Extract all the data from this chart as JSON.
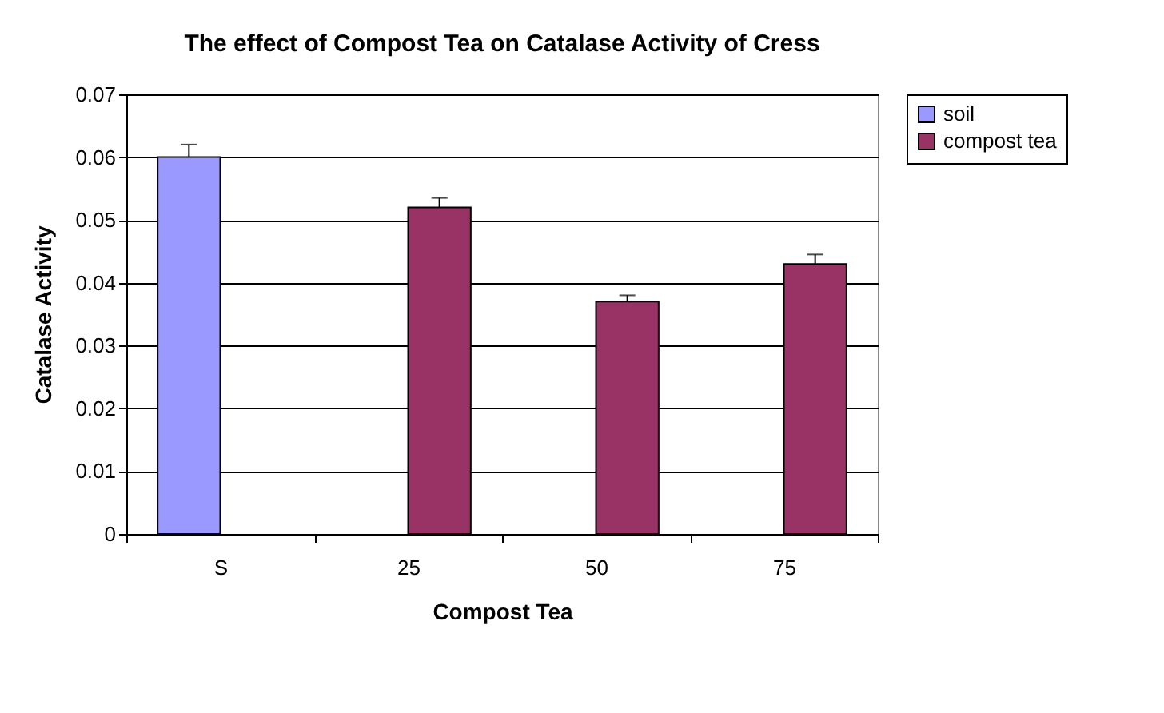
{
  "chart_data": {
    "type": "bar",
    "title": "The effect of Compost Tea on Catalase Activity of Cress",
    "xlabel": "Compost Tea",
    "ylabel": "Catalase Activity",
    "categories": [
      "S",
      "25",
      "50",
      "75"
    ],
    "series": [
      {
        "name": "soil",
        "color": "#9999ff",
        "values": [
          0.06,
          null,
          null,
          null
        ],
        "errors": [
          [
            0.06,
            0.062
          ],
          null,
          null,
          null
        ]
      },
      {
        "name": "compost tea",
        "color": "#993366",
        "values": [
          null,
          0.052,
          0.037,
          0.043
        ],
        "errors": [
          null,
          [
            0.052,
            0.0535
          ],
          [
            0.037,
            0.038
          ],
          [
            0.043,
            0.0445
          ]
        ]
      }
    ],
    "ylim": [
      0,
      0.07
    ],
    "yticks": [
      0,
      0.01,
      0.02,
      0.03,
      0.04,
      0.05,
      0.06,
      0.07
    ],
    "grid": "y",
    "legend": "right"
  }
}
